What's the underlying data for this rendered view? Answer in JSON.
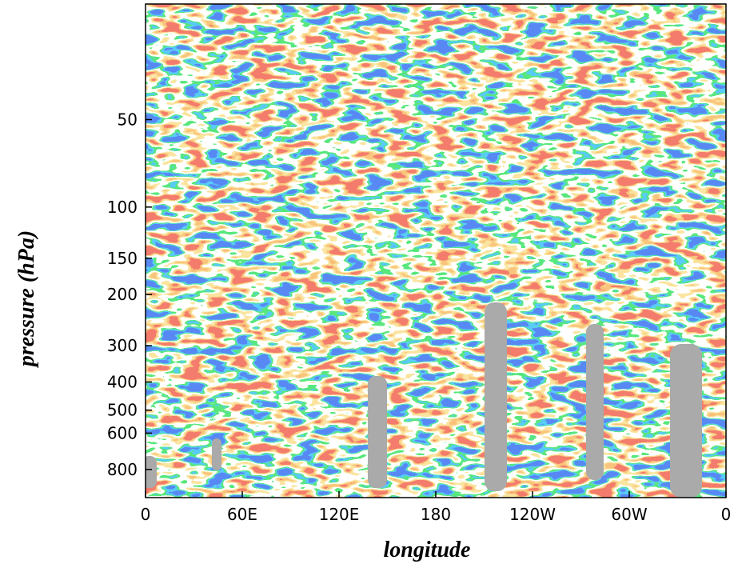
{
  "chart_data": {
    "type": "contour",
    "x_label": "longitude",
    "y_label": "pressure (hPa)",
    "xlim": [
      0,
      360
    ],
    "xticks": [
      0,
      {
        "value": 60,
        "label": "60E"
      },
      {
        "value": 120,
        "label": "120E"
      },
      180,
      {
        "value": 240,
        "label": "120W"
      },
      {
        "value": 300,
        "label": "60W"
      },
      {
        "value": 360,
        "label": "0"
      }
    ],
    "ylim": [
      1000,
      20
    ],
    "y_log": true,
    "yticks": [
      50,
      100,
      150,
      200,
      300,
      400,
      500,
      600,
      800
    ]
  }
}
